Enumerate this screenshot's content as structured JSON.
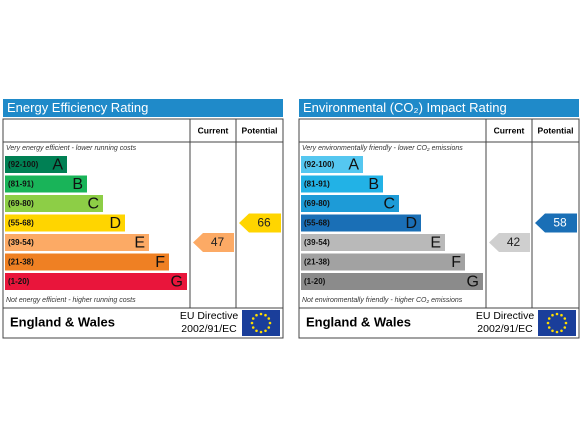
{
  "panels": [
    {
      "title": "Energy Efficiency Rating",
      "current_header": "Current",
      "potential_header": "Potential",
      "top_note": "Very energy efficient - lower running costs",
      "bottom_note": "Not energy efficient - higher running costs",
      "bands": [
        {
          "range": "(92-100)",
          "letter": "A",
          "color": "#008054"
        },
        {
          "range": "(81-91)",
          "letter": "B",
          "color": "#19b459"
        },
        {
          "range": "(69-80)",
          "letter": "C",
          "color": "#8dce46"
        },
        {
          "range": "(55-68)",
          "letter": "D",
          "color": "#ffd500"
        },
        {
          "range": "(39-54)",
          "letter": "E",
          "color": "#fcaa65"
        },
        {
          "range": "(21-38)",
          "letter": "F",
          "color": "#ef8023"
        },
        {
          "range": "(1-20)",
          "letter": "G",
          "color": "#e9153b"
        }
      ],
      "region": "England & Wales",
      "directive": "EU Directive",
      "directive_number": "2002/91/EC",
      "current": 47,
      "potential": 66
    },
    {
      "title": "Environmental (CO₂) Impact Rating",
      "current_header": "Current",
      "potential_header": "Potential",
      "top_note": "Very environmentally friendly - lower CO₂ emissions",
      "bottom_note": "Not environmentally friendly - higher CO₂ emissions",
      "bands": [
        {
          "range": "(92-100)",
          "letter": "A",
          "color": "#55c7f0"
        },
        {
          "range": "(81-91)",
          "letter": "B",
          "color": "#22b2e6"
        },
        {
          "range": "(69-80)",
          "letter": "C",
          "color": "#1d9bd7"
        },
        {
          "range": "(55-68)",
          "letter": "D",
          "color": "#1a6fb6"
        },
        {
          "range": "(39-54)",
          "letter": "E",
          "color": "#b9b9b9"
        },
        {
          "range": "(21-38)",
          "letter": "F",
          "color": "#a2a2a2"
        },
        {
          "range": "(1-20)",
          "letter": "G",
          "color": "#8b8b8b"
        }
      ],
      "region": "England & Wales",
      "directive": "EU Directive",
      "directive_number": "2002/91/EC",
      "current": 42,
      "potential": 58
    }
  ]
}
